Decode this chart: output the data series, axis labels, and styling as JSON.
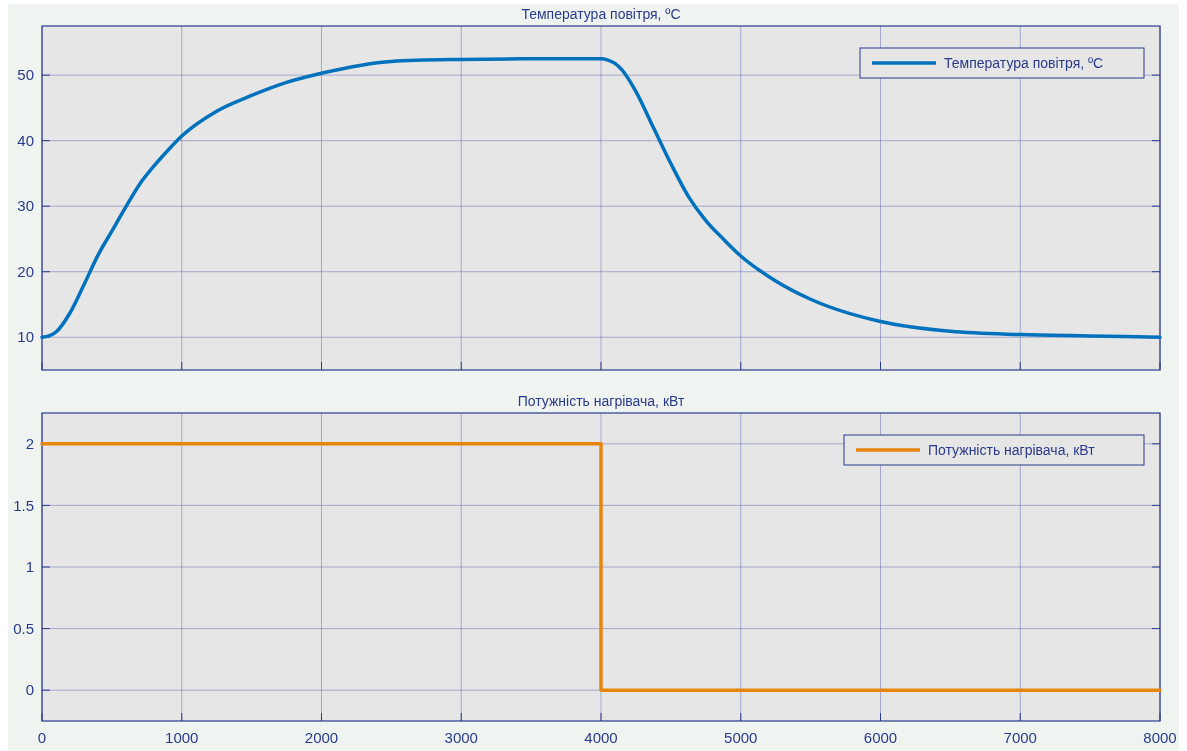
{
  "chart_data": [
    {
      "type": "line",
      "title": "Температура повітря, ºC",
      "xlim": [
        0,
        8000
      ],
      "xticks": [
        0,
        1000,
        2000,
        3000,
        4000,
        5000,
        6000,
        7000,
        8000
      ],
      "ylim": [
        5,
        57.5
      ],
      "yticks": [
        10,
        20,
        30,
        40,
        50
      ],
      "grid": true,
      "legend": "top right",
      "tick_labels": "y",
      "series": [
        {
          "name": "Температура повітря, ºC",
          "color": "#0072bd",
          "x": [
            0,
            50,
            100,
            200,
            300,
            400,
            500,
            600,
            700,
            800,
            900,
            1000,
            1250,
            1500,
            1750,
            2000,
            2500,
            3000,
            3500,
            4000,
            4050,
            4100,
            4150,
            4250,
            4375,
            4500,
            4625,
            4750,
            4875,
            5000,
            5250,
            5500,
            6000,
            6500,
            7000,
            7500,
            8000
          ],
          "values": [
            10,
            10.2,
            10.8,
            13.7,
            18,
            22.5,
            26.2,
            29.9,
            33.4,
            36.1,
            38.5,
            40.7,
            44.5,
            46.9,
            48.9,
            50.3,
            52.1,
            52.4,
            52.5,
            52.5,
            52.3,
            51.8,
            50.8,
            47.5,
            42,
            36.5,
            31.5,
            27.8,
            25,
            22.4,
            18.6,
            15.8,
            12.4,
            10.9,
            10.4,
            10.2,
            10
          ]
        }
      ]
    },
    {
      "type": "step",
      "title": "Потужність нагрівача, кВт",
      "xlim": [
        0,
        8000
      ],
      "xticks": [
        0,
        1000,
        2000,
        3000,
        4000,
        5000,
        6000,
        7000,
        8000
      ],
      "ylim": [
        -0.25,
        2.25
      ],
      "yticks": [
        0,
        0.5,
        1,
        1.5,
        2
      ],
      "grid": true,
      "legend": "top right",
      "series": [
        {
          "name": "Потужність нагрівача, кВт",
          "color": "#e8850e",
          "x": [
            0,
            4000,
            8000
          ],
          "values": [
            2,
            0,
            0
          ]
        }
      ]
    }
  ]
}
